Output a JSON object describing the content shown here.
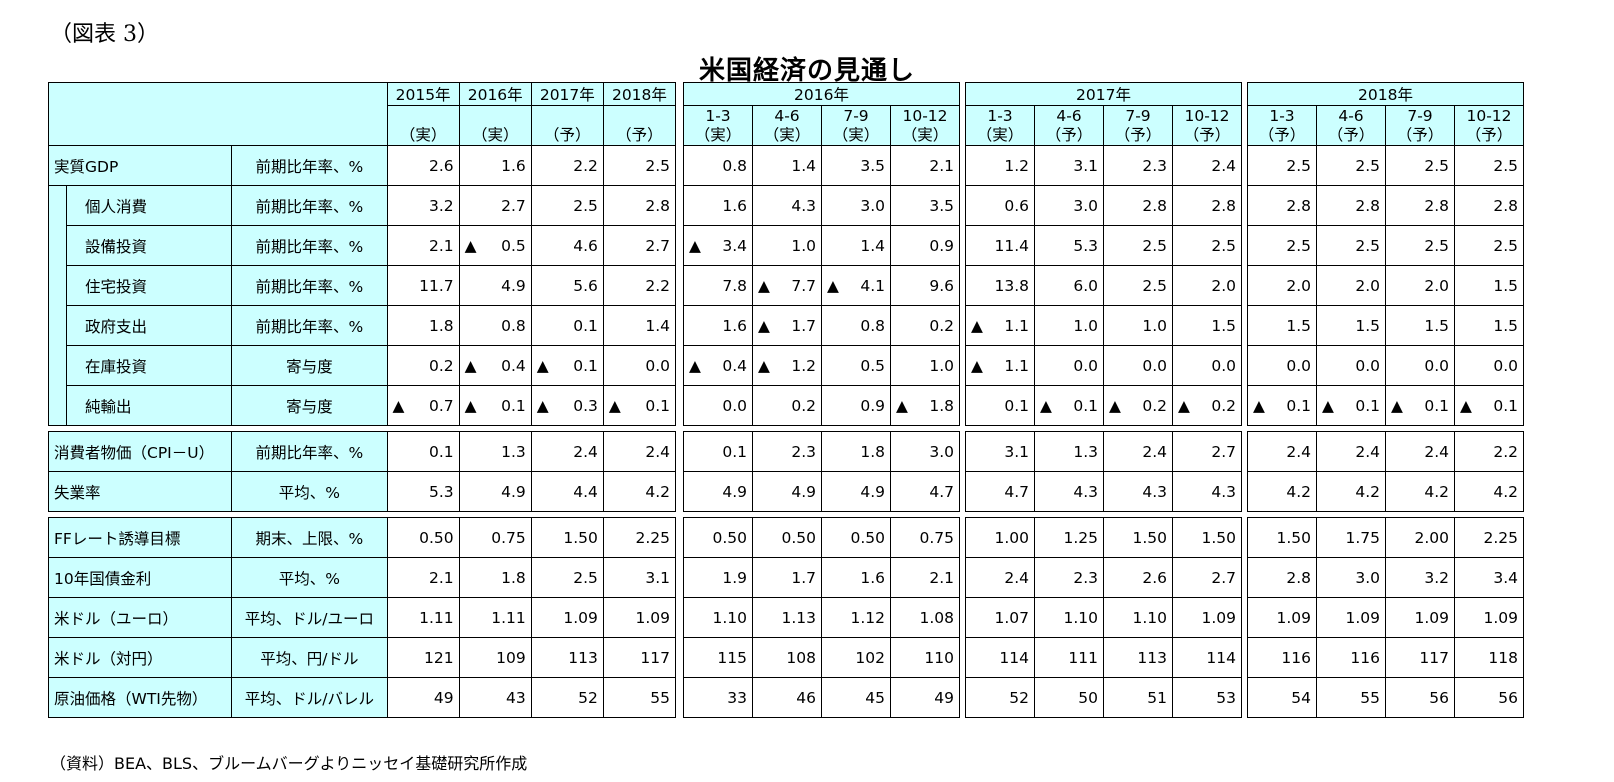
{
  "figure_label": "（図表 3）",
  "title": "米国経済の見通し",
  "source": "（資料）BEA、BLS、ブルームバーグよりニッセイ基礎研究所作成",
  "headers": {
    "annual": [
      {
        "year": "2015年",
        "type": "（実）"
      },
      {
        "year": "2016年",
        "type": "（実）"
      },
      {
        "year": "2017年",
        "type": "（予）"
      },
      {
        "year": "2018年",
        "type": "（予）"
      }
    ],
    "groups": [
      {
        "year": "2016年",
        "quarters": [
          {
            "q": "1-3",
            "type": "（実）"
          },
          {
            "q": "4-6",
            "type": "（実）"
          },
          {
            "q": "7-9",
            "type": "（実）"
          },
          {
            "q": "10-12",
            "type": "（実）"
          }
        ]
      },
      {
        "year": "2017年",
        "quarters": [
          {
            "q": "1-3",
            "type": "（実）"
          },
          {
            "q": "4-6",
            "type": "（予）"
          },
          {
            "q": "7-9",
            "type": "（予）"
          },
          {
            "q": "10-12",
            "type": "（予）"
          }
        ]
      },
      {
        "year": "2018年",
        "quarters": [
          {
            "q": "1-3",
            "type": "（予）"
          },
          {
            "q": "4-6",
            "type": "（予）"
          },
          {
            "q": "7-9",
            "type": "（予）"
          },
          {
            "q": "10-12",
            "type": "（予）"
          }
        ]
      }
    ]
  },
  "sections": [
    {
      "rows": [
        {
          "label": "実質GDP",
          "indent": false,
          "unit": "前期比年率、%",
          "values": [
            "2.6",
            "1.6",
            "2.2",
            "2.5",
            "0.8",
            "1.4",
            "3.5",
            "2.1",
            "1.2",
            "3.1",
            "2.3",
            "2.4",
            "2.5",
            "2.5",
            "2.5",
            "2.5"
          ]
        },
        {
          "label": "個人消費",
          "indent": true,
          "unit": "前期比年率、%",
          "values": [
            "3.2",
            "2.7",
            "2.5",
            "2.8",
            "1.6",
            "4.3",
            "3.0",
            "3.5",
            "0.6",
            "3.0",
            "2.8",
            "2.8",
            "2.8",
            "2.8",
            "2.8",
            "2.8"
          ]
        },
        {
          "label": "設備投資",
          "indent": true,
          "unit": "前期比年率、%",
          "values": [
            "2.1",
            "▲ 0.5",
            "4.6",
            "2.7",
            "▲ 3.4",
            "1.0",
            "1.4",
            "0.9",
            "11.4",
            "5.3",
            "2.5",
            "2.5",
            "2.5",
            "2.5",
            "2.5",
            "2.5"
          ]
        },
        {
          "label": "住宅投資",
          "indent": true,
          "unit": "前期比年率、%",
          "values": [
            "11.7",
            "4.9",
            "5.6",
            "2.2",
            "7.8",
            "▲ 7.7",
            "▲ 4.1",
            "9.6",
            "13.8",
            "6.0",
            "2.5",
            "2.0",
            "2.0",
            "2.0",
            "2.0",
            "1.5"
          ]
        },
        {
          "label": "政府支出",
          "indent": true,
          "unit": "前期比年率、%",
          "values": [
            "1.8",
            "0.8",
            "0.1",
            "1.4",
            "1.6",
            "▲ 1.7",
            "0.8",
            "0.2",
            "▲ 1.1",
            "1.0",
            "1.0",
            "1.5",
            "1.5",
            "1.5",
            "1.5",
            "1.5"
          ]
        },
        {
          "label": "在庫投資",
          "indent": true,
          "unit": "寄与度",
          "values": [
            "0.2",
            "▲ 0.4",
            "▲ 0.1",
            "0.0",
            "▲ 0.4",
            "▲ 1.2",
            "0.5",
            "1.0",
            "▲ 1.1",
            "0.0",
            "0.0",
            "0.0",
            "0.0",
            "0.0",
            "0.0",
            "0.0"
          ]
        },
        {
          "label": "純輸出",
          "indent": true,
          "unit": "寄与度",
          "values": [
            "▲ 0.7",
            "▲ 0.1",
            "▲ 0.3",
            "▲ 0.1",
            "0.0",
            "0.2",
            "0.9",
            "▲ 1.8",
            "0.1",
            "▲ 0.1",
            "▲ 0.2",
            "▲ 0.2",
            "▲ 0.1",
            "▲ 0.1",
            "▲ 0.1",
            "▲ 0.1"
          ]
        }
      ]
    },
    {
      "rows": [
        {
          "label": "消費者物価（CPI－U）",
          "indent": false,
          "unit": "前期比年率、%",
          "values": [
            "0.1",
            "1.3",
            "2.4",
            "2.4",
            "0.1",
            "2.3",
            "1.8",
            "3.0",
            "3.1",
            "1.3",
            "2.4",
            "2.7",
            "2.4",
            "2.4",
            "2.4",
            "2.2"
          ]
        },
        {
          "label": "失業率",
          "indent": false,
          "unit": "平均、%",
          "values": [
            "5.3",
            "4.9",
            "4.4",
            "4.2",
            "4.9",
            "4.9",
            "4.9",
            "4.7",
            "4.7",
            "4.3",
            "4.3",
            "4.3",
            "4.2",
            "4.2",
            "4.2",
            "4.2"
          ]
        }
      ]
    },
    {
      "rows": [
        {
          "label": "FFレート誘導目標",
          "indent": false,
          "unit": "期末、上限、%",
          "values": [
            "0.50",
            "0.75",
            "1.50",
            "2.25",
            "0.50",
            "0.50",
            "0.50",
            "0.75",
            "1.00",
            "1.25",
            "1.50",
            "1.50",
            "1.50",
            "1.75",
            "2.00",
            "2.25"
          ]
        },
        {
          "label": "10年国債金利",
          "indent": false,
          "unit": "平均、%",
          "values": [
            "2.1",
            "1.8",
            "2.5",
            "3.1",
            "1.9",
            "1.7",
            "1.6",
            "2.1",
            "2.4",
            "2.3",
            "2.6",
            "2.7",
            "2.8",
            "3.0",
            "3.2",
            "3.4"
          ]
        },
        {
          "label": "米ドル（ユーロ）",
          "indent": false,
          "unit": "平均、ドル/ユーロ",
          "values": [
            "1.11",
            "1.11",
            "1.09",
            "1.09",
            "1.10",
            "1.13",
            "1.12",
            "1.08",
            "1.07",
            "1.10",
            "1.10",
            "1.09",
            "1.09",
            "1.09",
            "1.09",
            "1.09"
          ]
        },
        {
          "label": "米ドル（対円）",
          "indent": false,
          "unit": "平均、円/ドル",
          "values": [
            "121",
            "109",
            "113",
            "117",
            "115",
            "108",
            "102",
            "110",
            "114",
            "111",
            "113",
            "114",
            "116",
            "116",
            "117",
            "118"
          ]
        },
        {
          "label": "原油価格（WTI先物）",
          "indent": false,
          "unit": "平均、ドル/バレル",
          "values": [
            "49",
            "43",
            "52",
            "55",
            "33",
            "46",
            "45",
            "49",
            "52",
            "50",
            "51",
            "53",
            "54",
            "55",
            "56",
            "56"
          ]
        }
      ]
    }
  ]
}
